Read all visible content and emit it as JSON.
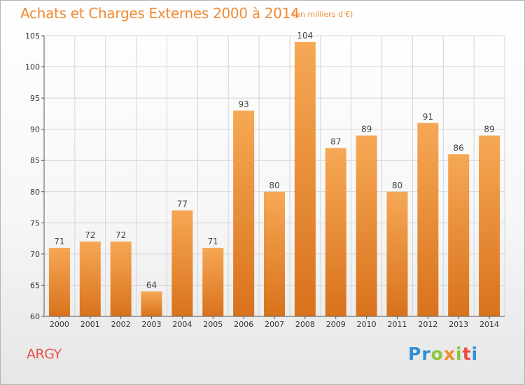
{
  "header": {
    "title": "Achats et Charges Externes 2000 à 2014",
    "subtitle": "(en milliers d'€)"
  },
  "footer": {
    "place": "ARGY",
    "logo_letters": [
      "P",
      "r",
      "o",
      "x",
      "i",
      "t",
      "i"
    ],
    "logo_colors": [
      "#2f8fd8",
      "#2f8fd8",
      "#8cc63f",
      "#f28c28",
      "#8cc63f",
      "#e94b3c",
      "#2f8fd8"
    ]
  },
  "colors": {
    "bar_top": "#f6a855",
    "bar_bottom": "#d9721c",
    "grid": "#d4d4d4",
    "axis": "#555555"
  },
  "chart_data": {
    "type": "bar",
    "title": "Achats et Charges Externes 2000 à 2014",
    "subtitle": "(en milliers d'€)",
    "categories": [
      "2000",
      "2001",
      "2002",
      "2003",
      "2004",
      "2005",
      "2006",
      "2007",
      "2008",
      "2009",
      "2010",
      "2011",
      "2012",
      "2013",
      "2014"
    ],
    "values": [
      71,
      72,
      72,
      64,
      77,
      71,
      93,
      80,
      104,
      87,
      89,
      80,
      91,
      86,
      89
    ],
    "data_labels": [
      "71",
      "72",
      "72",
      "64",
      "77",
      "71",
      "93",
      "80",
      "104",
      "87",
      "89",
      "80",
      "91",
      "86",
      "89"
    ],
    "ylim": [
      60,
      105
    ],
    "yticks": [
      60,
      65,
      70,
      75,
      80,
      85,
      90,
      95,
      100,
      105
    ],
    "xlabel": "",
    "ylabel": "",
    "grid": true,
    "legend": "none"
  }
}
